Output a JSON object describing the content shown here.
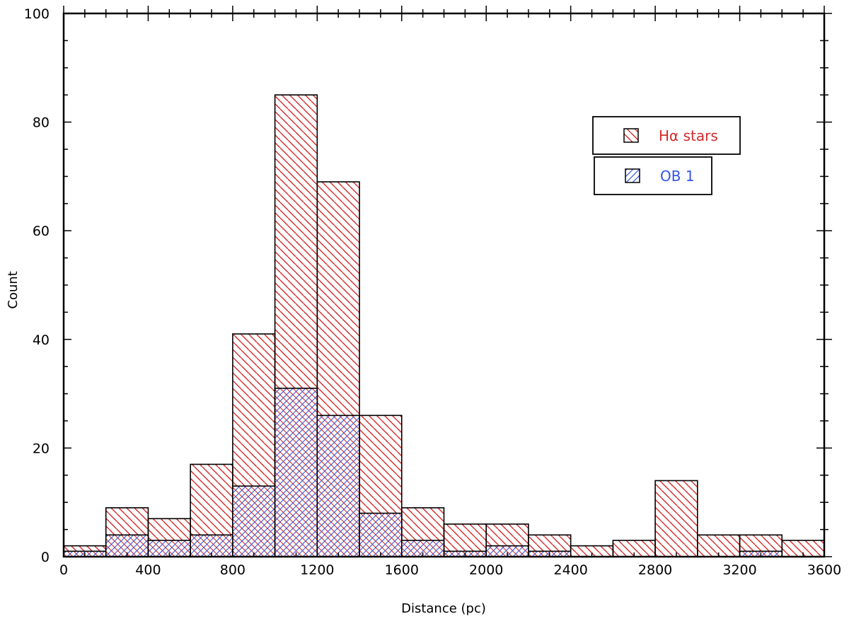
{
  "chart_data": {
    "type": "bar",
    "title": "",
    "xlabel": "Distance (pc)",
    "ylabel": "Count",
    "xlim": [
      0,
      3600
    ],
    "ylim": [
      0,
      100
    ],
    "xticks": [
      0,
      400,
      800,
      1200,
      1600,
      2000,
      2400,
      2800,
      3200,
      3600
    ],
    "yticks": [
      0,
      20,
      40,
      60,
      80,
      100
    ],
    "bin_width": 200,
    "bin_edges": [
      0,
      200,
      400,
      600,
      800,
      1000,
      1200,
      1400,
      1600,
      1800,
      2000,
      2200,
      2400,
      2600,
      2800,
      3000,
      3200,
      3400,
      3600
    ],
    "series": [
      {
        "name": "Hα stars",
        "color": "#d42a2a",
        "hatch": "backslash",
        "values": [
          2,
          9,
          7,
          17,
          41,
          85,
          69,
          26,
          9,
          6,
          6,
          4,
          2,
          3,
          14,
          4,
          4,
          3
        ]
      },
      {
        "name": "OB 1",
        "color": "#3355e6",
        "hatch": "crosshatch",
        "values": [
          1,
          4,
          3,
          4,
          13,
          31,
          26,
          8,
          3,
          1,
          2,
          1,
          0,
          0,
          0,
          0,
          1,
          0
        ]
      }
    ],
    "legend_position": "top-right",
    "grid": false
  }
}
